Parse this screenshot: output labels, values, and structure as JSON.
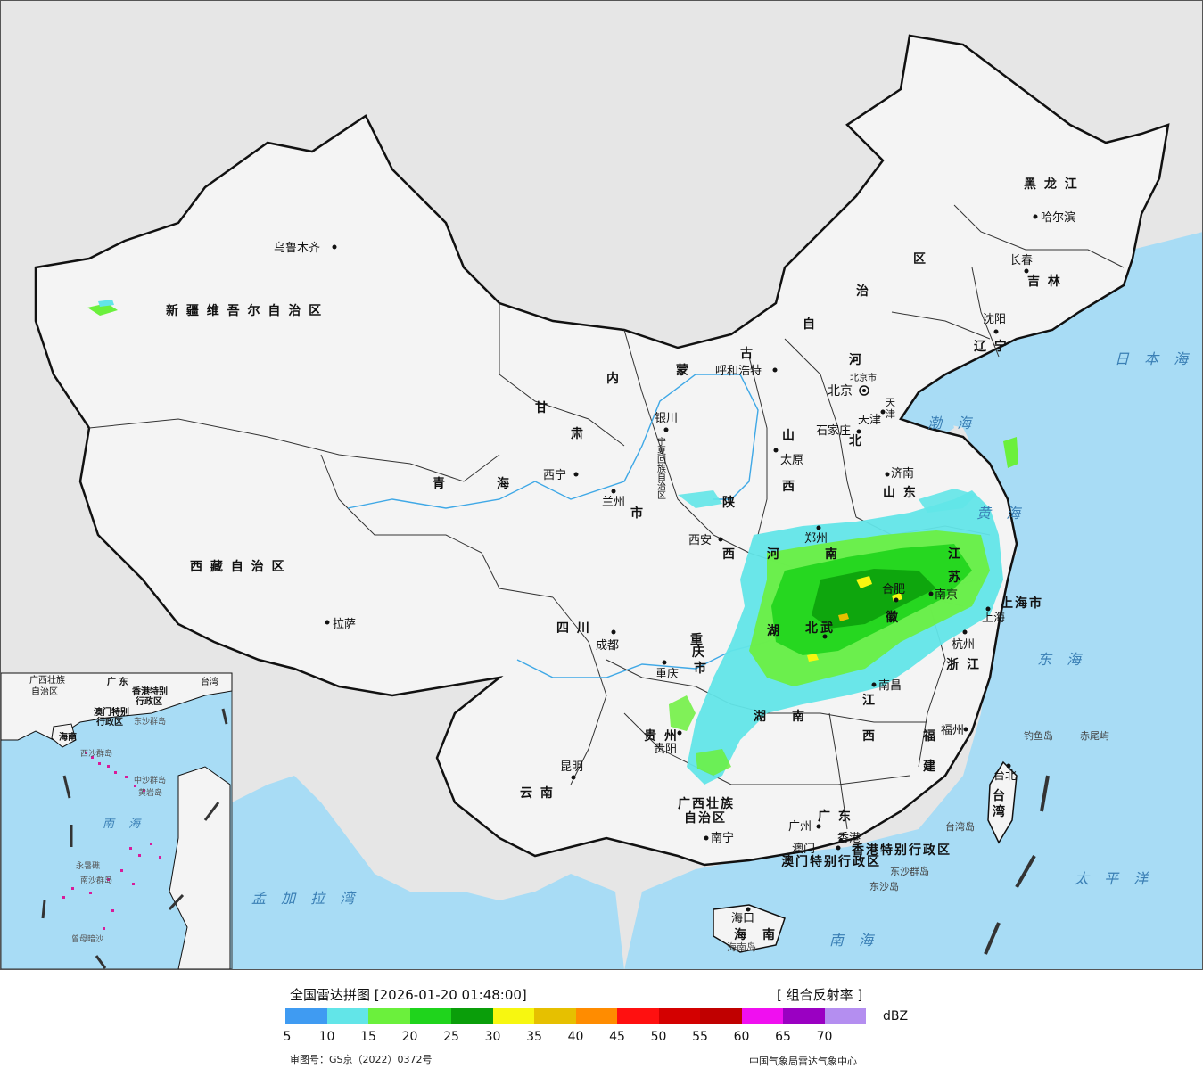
{
  "map": {
    "provinces": [
      {
        "id": "xinjiang",
        "label": "新 疆 维 吾 尔 自 治 区"
      },
      {
        "id": "xizang",
        "label": "西 藏 自 治 区"
      },
      {
        "id": "qinghai-1",
        "label": "青"
      },
      {
        "id": "qinghai-2",
        "label": "海"
      },
      {
        "id": "gansu-1",
        "label": "甘"
      },
      {
        "id": "gansu-2",
        "label": "肃"
      },
      {
        "id": "neimenggu-1",
        "label": "内"
      },
      {
        "id": "neimenggu-2",
        "label": "蒙"
      },
      {
        "id": "neimenggu-3",
        "label": "古"
      },
      {
        "id": "neimenggu-4",
        "label": "自"
      },
      {
        "id": "neimenggu-5",
        "label": "治"
      },
      {
        "id": "neimenggu-6",
        "label": "区"
      },
      {
        "id": "heilongjiang",
        "label": "黑 龙 江"
      },
      {
        "id": "jilin",
        "label": "吉 林"
      },
      {
        "id": "liaoning",
        "label": "辽 宁"
      },
      {
        "id": "hebei-1",
        "label": "河"
      },
      {
        "id": "hebei-2",
        "label": "北"
      },
      {
        "id": "shanxi-1",
        "label": "山"
      },
      {
        "id": "shanxi-2",
        "label": "西"
      },
      {
        "id": "shandong",
        "label": "山 东"
      },
      {
        "id": "henan-1",
        "label": "河"
      },
      {
        "id": "henan-2",
        "label": "南"
      },
      {
        "id": "shaanxi-1",
        "label": "陕"
      },
      {
        "id": "shaanxi-2",
        "label": "西"
      },
      {
        "id": "jiangsu-1",
        "label": "江"
      },
      {
        "id": "jiangsu-2",
        "label": "苏"
      },
      {
        "id": "anhui",
        "label": "徽"
      },
      {
        "id": "hubei-1",
        "label": "湖"
      },
      {
        "id": "hubei-2",
        "label": "北"
      },
      {
        "id": "sichuan",
        "label": "四 川"
      },
      {
        "id": "chongqing-1",
        "label": "重"
      },
      {
        "id": "chongqing-2",
        "label": "庆"
      },
      {
        "id": "chongqing-3",
        "label": "市"
      },
      {
        "id": "zhejiang",
        "label": "浙 江"
      },
      {
        "id": "jiangxi-1",
        "label": "江"
      },
      {
        "id": "jiangxi-2",
        "label": "西"
      },
      {
        "id": "hunan-1",
        "label": "湖"
      },
      {
        "id": "hunan-2",
        "label": "南"
      },
      {
        "id": "guizhou",
        "label": "贵 州"
      },
      {
        "id": "yunnan",
        "label": "云 南"
      },
      {
        "id": "fujian-1",
        "label": "福"
      },
      {
        "id": "fujian-2",
        "label": "建"
      },
      {
        "id": "guangxi-1",
        "label": "广西壮族"
      },
      {
        "id": "guangxi-2",
        "label": "自治区"
      },
      {
        "id": "guangdong",
        "label": "广 东"
      },
      {
        "id": "taiwan-1",
        "label": "台"
      },
      {
        "id": "taiwan-2",
        "label": "湾"
      },
      {
        "id": "hainan-1",
        "label": "海"
      },
      {
        "id": "hainan-2",
        "label": "南"
      },
      {
        "id": "shanghai",
        "label": "上海市"
      },
      {
        "id": "hongkong",
        "label": "香港特别行政区"
      },
      {
        "id": "macau",
        "label": "澳门特别行政区"
      },
      {
        "id": "ningxia",
        "label": "宁夏回族自治区"
      },
      {
        "id": "gansu-3",
        "label": "市"
      },
      {
        "id": "tianjin-1",
        "label": "天"
      },
      {
        "id": "tianjin-2",
        "label": "津"
      },
      {
        "id": "beijing-small",
        "label": "北京市"
      }
    ],
    "cities": [
      {
        "id": "urumqi",
        "label": "乌鲁木齐"
      },
      {
        "id": "lhasa",
        "label": "拉萨"
      },
      {
        "id": "xining",
        "label": "西宁"
      },
      {
        "id": "lanzhou",
        "label": "兰州"
      },
      {
        "id": "yinchuan",
        "label": "银川"
      },
      {
        "id": "hohhot",
        "label": "呼和浩特"
      },
      {
        "id": "harbin",
        "label": "哈尔滨"
      },
      {
        "id": "changchun",
        "label": "长春"
      },
      {
        "id": "shenyang",
        "label": "沈阳"
      },
      {
        "id": "beijing",
        "label": "北京"
      },
      {
        "id": "tianjin",
        "label": "天津"
      },
      {
        "id": "shijiazhuang",
        "label": "石家庄"
      },
      {
        "id": "taiyuan",
        "label": "太原"
      },
      {
        "id": "jinan",
        "label": "济南"
      },
      {
        "id": "zhengzhou",
        "label": "郑州"
      },
      {
        "id": "xian",
        "label": "西安"
      },
      {
        "id": "hefei",
        "label": "合肥"
      },
      {
        "id": "nanjing",
        "label": "南京"
      },
      {
        "id": "shanghai-city",
        "label": "上海"
      },
      {
        "id": "hangzhou",
        "label": "杭州"
      },
      {
        "id": "wuhan",
        "label": "武"
      },
      {
        "id": "chengdu",
        "label": "成都"
      },
      {
        "id": "chongqing-city",
        "label": "重庆"
      },
      {
        "id": "nanchang",
        "label": "南昌"
      },
      {
        "id": "guiyang",
        "label": "贵阳"
      },
      {
        "id": "kunming",
        "label": "昆明"
      },
      {
        "id": "fuzhou",
        "label": "福州"
      },
      {
        "id": "taibei",
        "label": "台北"
      },
      {
        "id": "nanning",
        "label": "南宁"
      },
      {
        "id": "guangzhou",
        "label": "广州"
      },
      {
        "id": "aomen",
        "label": "澳门"
      },
      {
        "id": "xianggang",
        "label": "香港"
      },
      {
        "id": "haikou",
        "label": "海口"
      }
    ],
    "seas": [
      {
        "id": "japan-sea",
        "label": "日 本 海"
      },
      {
        "id": "bohai",
        "label": "渤 海"
      },
      {
        "id": "yellow-sea",
        "label": "黄 海"
      },
      {
        "id": "east-china-sea",
        "label": "东 海"
      },
      {
        "id": "pacific",
        "label": "太 平 洋"
      },
      {
        "id": "south-china-sea",
        "label": "南 海"
      },
      {
        "id": "bay-of-bengal",
        "label": "孟 加 拉 湾"
      }
    ],
    "islands": [
      {
        "id": "diaoyu",
        "label": "钓鱼岛"
      },
      {
        "id": "chiwei",
        "label": "赤尾屿"
      },
      {
        "id": "taiwan-island",
        "label": "台湾岛"
      },
      {
        "id": "dongsha-qundao",
        "label": "东沙群岛"
      },
      {
        "id": "dongsha-dao",
        "label": "东沙岛"
      },
      {
        "id": "hainan-dao",
        "label": "海南岛"
      }
    ],
    "inset": {
      "labels": [
        {
          "id": "inset-guangxi",
          "label": "广西壮族"
        },
        {
          "id": "inset-guangxi2",
          "label": "自治区"
        },
        {
          "id": "inset-guangdong",
          "label": "广 东"
        },
        {
          "id": "inset-taiwan",
          "label": "台湾"
        },
        {
          "id": "inset-hk",
          "label": "香港特别"
        },
        {
          "id": "inset-hk2",
          "label": "行政区"
        },
        {
          "id": "inset-macau",
          "label": "澳门特别"
        },
        {
          "id": "inset-macau2",
          "label": "行政区"
        },
        {
          "id": "inset-dongsha",
          "label": "东沙群岛"
        },
        {
          "id": "inset-hainan",
          "label": "海南"
        },
        {
          "id": "inset-xisha",
          "label": "西沙群岛"
        },
        {
          "id": "inset-zhongsha",
          "label": "中沙群岛"
        },
        {
          "id": "inset-huangyan",
          "label": "黄岩岛"
        },
        {
          "id": "inset-nanhai",
          "label": "南 海"
        },
        {
          "id": "inset-nansha",
          "label": "南沙群岛"
        },
        {
          "id": "inset-zengmu",
          "label": "曾母暗沙"
        },
        {
          "id": "inset-yongshu",
          "label": "永暑礁"
        }
      ]
    }
  },
  "legend": {
    "title": "全国雷达拼图 [2026-01-20 01:48:00]",
    "product": "[ 组合反射率 ]",
    "unit": "dBZ",
    "colors": [
      "#3f9bf2",
      "#62e5e8",
      "#6bf03c",
      "#1fd41c",
      "#0a9e0a",
      "#f7f710",
      "#e6c000",
      "#ff8c00",
      "#ff1010",
      "#d40000",
      "#c00000",
      "#f00ff0",
      "#9a00c2",
      "#b48ef0"
    ],
    "ticks": [
      "5",
      "10",
      "15",
      "20",
      "25",
      "30",
      "35",
      "40",
      "45",
      "50",
      "55",
      "60",
      "65",
      "70"
    ],
    "approval": "审图号：GS京（2022）0372号",
    "organization": "中国气象局雷达气象中心"
  }
}
